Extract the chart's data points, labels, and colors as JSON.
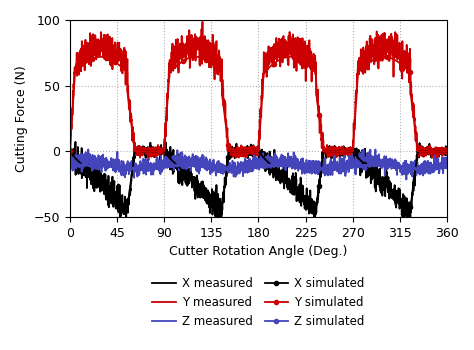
{
  "xlabel": "Cutter Rotation Angle (Deg.)",
  "ylabel": "Cutting Force (N)",
  "xlim": [
    0,
    360
  ],
  "ylim": [
    -50,
    100
  ],
  "xticks": [
    0,
    45,
    90,
    135,
    180,
    225,
    270,
    315,
    360
  ],
  "yticks": [
    -50,
    0,
    50,
    100
  ],
  "grid_color": "#aaaaaa",
  "bg_color": "#ffffff",
  "colors": {
    "x": "#000000",
    "y": "#cc0000",
    "z": "#4444bb"
  },
  "legend_labels": [
    "X measured",
    "Y measured",
    "Z measured",
    "X simulated",
    "Y simulated",
    "Z simulated"
  ]
}
